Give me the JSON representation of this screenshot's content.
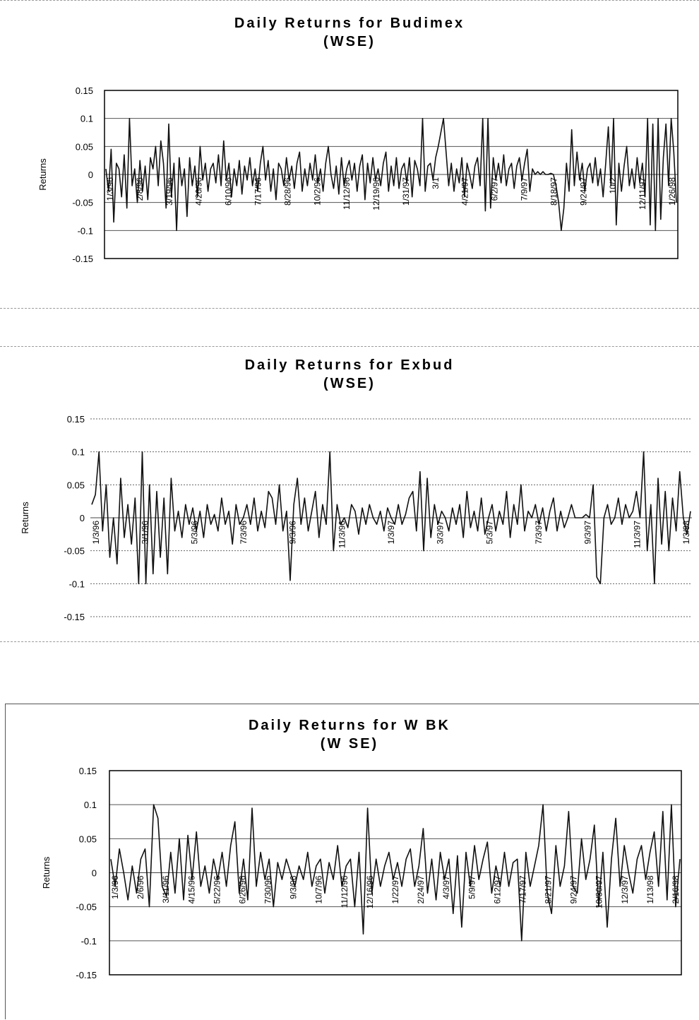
{
  "chart_data": [
    {
      "type": "line",
      "title": "Daily Returns for Budimex",
      "subtitle": "(WSE)",
      "ylabel": "Returns",
      "xlabel": "",
      "ylim": [
        -0.15,
        0.15
      ],
      "yticks": [
        "0.15",
        "0.1",
        "0.05",
        "0",
        "-0.05",
        "-0.1",
        "-0.15"
      ],
      "grid": true,
      "xticks": [
        "1/3/96",
        "2/8/96",
        "3/19/96",
        "4/26/96",
        "6/10/96",
        "7/17/96",
        "8/28/96",
        "10/2/96",
        "11/12/96",
        "12/19/96",
        "1/31/97",
        "3/1",
        "4/21/97",
        "6/2/97",
        "7/9/97",
        "8/18/97",
        "9/24/97",
        "10/2",
        "12/11/97",
        "1/26/98"
      ],
      "series": [
        {
          "values": [
            0.01,
            -0.03,
            0.045,
            -0.085,
            0.02,
            0.01,
            -0.04,
            0.035,
            -0.06,
            0.1,
            -0.02,
            0.01,
            -0.05,
            0.025,
            -0.03,
            0.015,
            -0.045,
            0.03,
            0.01,
            0.05,
            -0.02,
            0.06,
            0.02,
            -0.06,
            0.09,
            -0.04,
            0.02,
            -0.1,
            0.03,
            -0.02,
            0.01,
            -0.075,
            0.03,
            -0.02,
            0.015,
            -0.04,
            0.05,
            -0.01,
            0.02,
            -0.03,
            0.01,
            0.02,
            -0.015,
            0.035,
            -0.02,
            0.06,
            -0.01,
            0.02,
            -0.04,
            0.01,
            -0.02,
            0.025,
            -0.035,
            0.015,
            -0.01,
            0.03,
            -0.02,
            0.01,
            -0.03,
            0.02,
            0.05,
            -0.01,
            0.025,
            -0.03,
            0.01,
            -0.045,
            0.02,
            0.01,
            -0.02,
            0.03,
            -0.01,
            0.015,
            -0.025,
            0.02,
            0.04,
            -0.03,
            0.01,
            -0.02,
            0.02,
            -0.01,
            0.035,
            -0.015,
            0.01,
            -0.03,
            0.02,
            0.05,
            0.0,
            -0.025,
            0.015,
            -0.035,
            0.03,
            -0.02,
            0.01,
            0.025,
            -0.01,
            0.02,
            -0.03,
            0.015,
            0.035,
            -0.045,
            0.02,
            -0.015,
            0.03,
            -0.01,
            0.01,
            -0.02,
            0.02,
            0.04,
            -0.03,
            0.015,
            -0.02,
            0.03,
            -0.025,
            0.01,
            0.02,
            -0.015,
            0.03,
            -0.04,
            0.025,
            0.01,
            -0.02,
            0.1,
            -0.03,
            0.015,
            0.02,
            -0.01,
            0.03,
            0.05,
            0.075,
            0.1,
            0.04,
            -0.02,
            0.02,
            -0.03,
            0.01,
            -0.015,
            0.03,
            -0.04,
            0.02,
            0.0,
            -0.025,
            0.015,
            0.03,
            -0.02,
            0.1,
            -0.065,
            0.1,
            -0.06,
            0.03,
            -0.01,
            0.02,
            -0.015,
            0.035,
            -0.02,
            0.01,
            0.02,
            -0.025,
            0.015,
            0.03,
            -0.01,
            0.02,
            0.045,
            -0.03,
            0.01,
            0.0,
            0.005,
            0.0,
            0.005,
            0.0,
            0.0,
            0.002,
            0.0,
            -0.02,
            -0.05,
            -0.1,
            -0.06,
            0.02,
            -0.03,
            0.08,
            -0.02,
            0.04,
            -0.01,
            0.02,
            -0.03,
            0.01,
            0.02,
            -0.015,
            0.03,
            -0.02,
            0.01,
            -0.04,
            0.02,
            0.085,
            -0.02,
            0.1,
            -0.09,
            0.02,
            -0.03,
            0.015,
            0.05,
            -0.02,
            0.01,
            -0.025,
            0.03,
            -0.015,
            0.02,
            -0.04,
            0.1,
            -0.09,
            0.09,
            -0.1,
            0.1,
            -0.08,
            0.03,
            0.09,
            -0.02,
            0.1,
            0.04,
            -0.05
          ]
        }
      ]
    },
    {
      "type": "line",
      "title": "Daily Returns for Exbud",
      "subtitle": "(WSE)",
      "ylabel": "Returns",
      "xlabel": "",
      "ylim": [
        -0.15,
        0.15
      ],
      "yticks": [
        "0.15",
        "0.1",
        "0.05",
        "0",
        "-0.05",
        "-0.1",
        "-0.15"
      ],
      "grid": true,
      "xticks": [
        "1/3/96",
        "3/1/96",
        "5/3/96",
        "7/3/96",
        "9/3/96",
        "11/3/96",
        "1/3/97",
        "3/3/97",
        "5/3/97",
        "7/3/97",
        "9/3/97",
        "11/3/97",
        "1/3/98"
      ],
      "series": [
        {
          "values": [
            0.02,
            0.035,
            0.1,
            -0.02,
            0.05,
            -0.06,
            0.0,
            -0.07,
            0.06,
            -0.03,
            0.02,
            -0.04,
            0.03,
            -0.1,
            0.1,
            -0.1,
            0.05,
            -0.085,
            0.04,
            -0.06,
            0.03,
            -0.085,
            0.06,
            -0.02,
            0.01,
            -0.03,
            0.02,
            -0.01,
            0.015,
            -0.02,
            0.01,
            -0.03,
            0.02,
            -0.01,
            0.005,
            -0.02,
            0.03,
            -0.01,
            0.01,
            -0.04,
            0.02,
            -0.01,
            0.0,
            0.02,
            -0.01,
            0.03,
            -0.02,
            0.01,
            -0.015,
            0.04,
            0.03,
            -0.01,
            0.05,
            -0.02,
            0.01,
            -0.095,
            0.02,
            0.06,
            -0.01,
            0.03,
            -0.02,
            0.01,
            0.04,
            -0.03,
            0.02,
            -0.01,
            0.1,
            -0.05,
            0.02,
            -0.01,
            0.0,
            -0.015,
            0.02,
            0.01,
            -0.025,
            0.015,
            -0.01,
            0.02,
            0.0,
            -0.01,
            0.01,
            -0.02,
            0.015,
            0.0,
            -0.01,
            0.02,
            -0.01,
            0.005,
            0.03,
            0.04,
            -0.02,
            0.07,
            -0.05,
            0.06,
            -0.03,
            0.02,
            -0.01,
            0.01,
            0.0,
            -0.02,
            0.015,
            -0.01,
            0.02,
            -0.03,
            0.04,
            -0.015,
            0.01,
            -0.02,
            0.03,
            -0.025,
            0.0,
            0.02,
            -0.02,
            0.01,
            -0.01,
            0.04,
            -0.03,
            0.02,
            -0.01,
            0.05,
            -0.02,
            0.01,
            0.0,
            0.02,
            -0.01,
            0.015,
            -0.02,
            0.01,
            0.03,
            -0.02,
            0.01,
            -0.015,
            0.0,
            0.02,
            0.0,
            0.0,
            0.0,
            0.005,
            0.0,
            0.05,
            -0.09,
            -0.1,
            0.0,
            0.02,
            -0.01,
            0.0,
            0.03,
            -0.01,
            0.02,
            0.0,
            0.01,
            0.04,
            0.0,
            0.1,
            -0.05,
            0.02,
            -0.1,
            0.06,
            -0.04,
            0.04,
            -0.05,
            0.03,
            -0.02,
            0.07,
            0.0,
            -0.025,
            0.01
          ]
        }
      ]
    },
    {
      "type": "line",
      "title": "Daily Returns for W BK",
      "subtitle": "(W SE)",
      "ylabel": "Returns",
      "xlabel": "",
      "ylim": [
        -0.15,
        0.15
      ],
      "yticks": [
        "0.15",
        "0.1",
        "0.05",
        "0",
        "-0.05",
        "-0.1",
        "-0.15"
      ],
      "grid": true,
      "xticks": [
        "1/3/96",
        "2/6/96",
        "3/11/96",
        "4/15/96",
        "5/22/96",
        "6/26/96",
        "7/30/96",
        "9/3/96",
        "10/7/96",
        "11/12/96",
        "12/16/96",
        "1/22/97",
        "2/24/97",
        "4/3/97",
        "5/9/97",
        "6/12/97",
        "7/17/97",
        "8/21/97",
        "9/24/97",
        "10/30/97",
        "12/3/97",
        "1/13/98",
        "2/16/98"
      ],
      "series": [
        {
          "values": [
            0.02,
            -0.02,
            0.035,
            0.0,
            -0.04,
            0.01,
            -0.03,
            0.02,
            0.035,
            -0.05,
            0.1,
            0.08,
            -0.02,
            -0.035,
            0.03,
            -0.03,
            0.05,
            -0.04,
            0.055,
            -0.01,
            0.06,
            -0.02,
            0.01,
            -0.03,
            0.02,
            -0.01,
            0.03,
            -0.02,
            0.04,
            0.075,
            -0.03,
            0.02,
            -0.04,
            0.095,
            -0.02,
            0.03,
            -0.01,
            0.02,
            -0.05,
            0.015,
            -0.01,
            0.02,
            0.0,
            -0.02,
            0.01,
            -0.01,
            0.03,
            -0.02,
            0.01,
            0.02,
            -0.03,
            0.015,
            -0.01,
            0.04,
            -0.02,
            0.01,
            0.02,
            -0.05,
            0.03,
            -0.09,
            0.095,
            -0.03,
            0.02,
            -0.02,
            0.01,
            0.03,
            -0.01,
            0.015,
            -0.02,
            0.02,
            0.035,
            -0.02,
            0.01,
            0.065,
            -0.03,
            0.02,
            -0.04,
            0.03,
            -0.01,
            0.02,
            -0.06,
            0.025,
            -0.08,
            0.03,
            -0.02,
            0.04,
            -0.01,
            0.02,
            0.045,
            -0.03,
            0.01,
            -0.02,
            0.03,
            -0.02,
            0.015,
            0.02,
            -0.1,
            0.03,
            -0.02,
            0.01,
            0.04,
            0.1,
            -0.03,
            -0.06,
            0.04,
            -0.02,
            0.01,
            0.09,
            -0.02,
            -0.03,
            0.05,
            -0.01,
            0.02,
            0.07,
            -0.05,
            0.03,
            -0.08,
            0.02,
            0.08,
            -0.02,
            0.04,
            0.0,
            -0.03,
            0.02,
            0.04,
            -0.01,
            0.03,
            0.06,
            -0.02,
            0.09,
            -0.04,
            0.1,
            -0.05,
            0.02
          ]
        }
      ]
    }
  ]
}
